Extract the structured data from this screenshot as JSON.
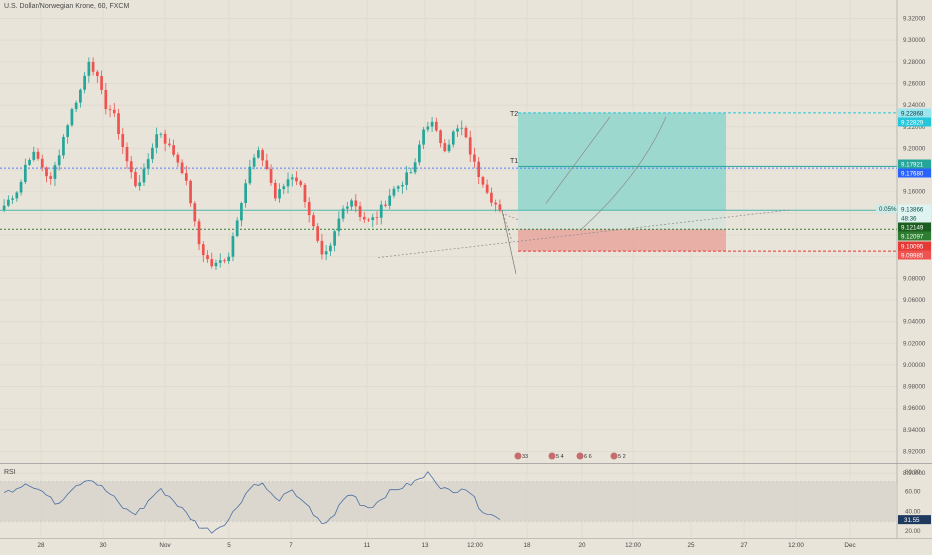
{
  "header": {
    "title": "U.S. Dollar/Norwegian Krone, 60, FXCM"
  },
  "rsi_panel": {
    "title": "RSI",
    "current_label": "31.55"
  },
  "chart_data": [
    {
      "type": "candlestick",
      "title": "U.S. Dollar/Norwegian Krone, 60, FXCM",
      "ylim": [
        8.88,
        9.33
      ],
      "y_ticks": [
        "9.32000",
        "9.30000",
        "9.28000",
        "9.26000",
        "9.24000",
        "9.22000",
        "9.20000",
        "9.18000",
        "9.16000",
        "9.14000",
        "9.12000",
        "9.10000",
        "9.08000",
        "9.06000",
        "9.04000",
        "9.02000",
        "9.00000",
        "8.98000",
        "8.96000",
        "8.94000",
        "8.92000",
        "8.90000"
      ],
      "x_ticks": [
        "28",
        "30",
        "Nov",
        "5",
        "7",
        "11",
        "13",
        "12:00",
        "18",
        "20",
        "12:00",
        "25",
        "27",
        "12:00",
        "Dec"
      ],
      "price_path": [
        9.143,
        9.152,
        9.16,
        9.188,
        9.19,
        9.178,
        9.165,
        9.19,
        9.215,
        9.236,
        9.252,
        9.28,
        9.26,
        9.236,
        9.23,
        9.206,
        9.18,
        9.162,
        9.172,
        9.196,
        9.214,
        9.2,
        9.19,
        9.176,
        9.15,
        9.11,
        9.095,
        9.086,
        9.092,
        9.098,
        9.13,
        9.16,
        9.184,
        9.192,
        9.176,
        9.15,
        9.16,
        9.172,
        9.166,
        9.146,
        9.12,
        9.094,
        9.1,
        9.126,
        9.144,
        9.15,
        9.134,
        9.128,
        9.132,
        9.144,
        9.156,
        9.162,
        9.17,
        9.178,
        9.212,
        9.222,
        9.206,
        9.196,
        9.21,
        9.215,
        9.196,
        9.175,
        9.164,
        9.148,
        9.1387
      ],
      "levels": [
        {
          "label": "T2",
          "price_labels": [
            "9.22868",
            "9.22829"
          ],
          "color": "#26c6da"
        },
        {
          "label": "T1",
          "price_labels": [
            "9.17921",
            "9.17680"
          ],
          "color": "#2962ff"
        },
        {
          "label": "",
          "price_labels": [
            "0.05%",
            "9.13866",
            "48:36"
          ],
          "color": "#26a69a"
        },
        {
          "label": "",
          "price_labels": [
            "9.12149",
            "9.12097"
          ],
          "color": "#1b5e20"
        },
        {
          "label": "",
          "price_labels": [
            "9.10095",
            "9.09985"
          ],
          "color": "#e53935"
        }
      ],
      "events": [
        "33",
        "5",
        "4",
        "6",
        "6",
        "5",
        "2"
      ]
    },
    {
      "type": "line",
      "title": "RSI",
      "ylim": [
        15,
        85
      ],
      "y_ticks": [
        "80.00",
        "60.00",
        "40.00",
        "20.00"
      ],
      "band": [
        30,
        70
      ],
      "values": [
        58,
        62,
        66,
        70,
        64,
        60,
        52,
        48,
        58,
        66,
        70,
        74,
        68,
        62,
        55,
        46,
        40,
        38,
        44,
        54,
        62,
        58,
        50,
        42,
        34,
        26,
        22,
        20,
        26,
        32,
        44,
        56,
        66,
        70,
        62,
        52,
        54,
        60,
        56,
        48,
        34,
        28,
        30,
        42,
        54,
        58,
        48,
        44,
        48,
        56,
        60,
        64,
        66,
        70,
        74,
        80,
        68,
        62,
        58,
        66,
        62,
        48,
        40,
        36,
        31.55
      ],
      "last_value_label": "31.55"
    }
  ]
}
